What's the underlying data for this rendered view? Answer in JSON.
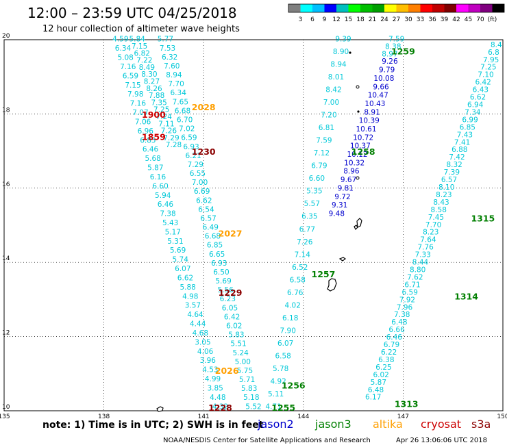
{
  "header": {
    "time_range": "12:00 – 23:59 UTC 04/25/2018",
    "subtitle": "12 hour collection of altimeter wave heights"
  },
  "colorbar": {
    "colors": [
      "#7f7f7f",
      "#00ffff",
      "#00bfff",
      "#0000ff",
      "#00bfbf",
      "#00ff00",
      "#00bf00",
      "#009f00",
      "#ffff00",
      "#ffbf00",
      "#ff7f00",
      "#ff0000",
      "#bf0000",
      "#7f0000",
      "#ff00ff",
      "#bf00bf",
      "#7f007f",
      "#000000"
    ],
    "labels": [
      "3",
      "6",
      "9",
      "12",
      "15",
      "18",
      "21",
      "24",
      "27",
      "30",
      "33",
      "36",
      "39",
      "42",
      "45",
      "70",
      "(ft)"
    ]
  },
  "map": {
    "lon_min": 135,
    "lon_max": 150,
    "lat_min": 10,
    "lat_max": 20,
    "x_ticks": [
      "135",
      "138",
      "141",
      "144",
      "147",
      "150"
    ],
    "y_ticks": [
      "20",
      "18",
      "16",
      "14",
      "12",
      "10"
    ],
    "grid": "dotted"
  },
  "colors": {
    "jason2": "#0000cd",
    "jason3": "#007f00",
    "altika": "#ff9f00",
    "cryosat": "#cc0000",
    "s3a": "#8b0000",
    "cyan": "#00c8d8",
    "swh_cyan": "#1ec8e6"
  },
  "track_labels": [
    {
      "text": "2028",
      "color": "altika",
      "lon": 141.0,
      "lat": 18.1
    },
    {
      "text": "1900",
      "color": "cryosat",
      "lon": 139.5,
      "lat": 17.9
    },
    {
      "text": "1859",
      "color": "cryosat",
      "lon": 139.5,
      "lat": 17.3
    },
    {
      "text": "1230",
      "color": "s3a",
      "lon": 141.0,
      "lat": 16.9
    },
    {
      "text": "2027",
      "color": "altika",
      "lon": 141.8,
      "lat": 14.7
    },
    {
      "text": "1229",
      "color": "s3a",
      "lon": 141.8,
      "lat": 13.1
    },
    {
      "text": "2026",
      "color": "altika",
      "lon": 141.7,
      "lat": 11.0
    },
    {
      "text": "1228",
      "color": "s3a",
      "lon": 141.5,
      "lat": 10.0
    },
    {
      "text": "1255",
      "color": "jason3",
      "lon": 143.4,
      "lat": 10.0
    },
    {
      "text": "1256",
      "color": "jason3",
      "lon": 143.7,
      "lat": 10.6
    },
    {
      "text": "1257",
      "color": "jason3",
      "lon": 144.6,
      "lat": 13.6
    },
    {
      "text": "1258",
      "color": "jason3",
      "lon": 145.8,
      "lat": 16.9
    },
    {
      "text": "1259",
      "color": "jason3",
      "lon": 147.0,
      "lat": 19.6
    },
    {
      "text": "1313",
      "color": "jason3",
      "lon": 147.1,
      "lat": 10.1
    },
    {
      "text": "1314",
      "color": "jason3",
      "lon": 148.9,
      "lat": 13.0
    },
    {
      "text": "1315",
      "color": "jason3",
      "lon": 149.4,
      "lat": 15.1
    }
  ],
  "tracks": [
    {
      "id": "track-a",
      "color": "cyan",
      "start": [
        139.0,
        19.95
      ],
      "end": [
        140.1,
        17.1
      ],
      "values": [
        "5.84",
        "7.15",
        "6.82",
        "7.22",
        "8.49",
        "8.30",
        "8.27",
        "8.26",
        "7.88",
        "7.35",
        "7.25",
        "7.24",
        "7.11",
        "7.26",
        "7.29",
        "7.28"
      ]
    },
    {
      "id": "track-b",
      "color": "cyan",
      "start": [
        138.5,
        19.95
      ],
      "end": [
        141.5,
        10.05
      ],
      "values": [
        "4.59",
        "6.34",
        "5.08",
        "7.16",
        "6.59",
        "7.15",
        "7.98",
        "7.16",
        "7.07",
        "7.06",
        "6.96",
        "6.85",
        "6.46",
        "5.68",
        "5.87",
        "6.16",
        "6.60",
        "5.94",
        "6.46",
        "7.38",
        "5.43",
        "5.17",
        "5.31",
        "5.69",
        "5.74",
        "6.07",
        "6.62",
        "5.88",
        "4.98",
        "3.57",
        "4.64",
        "4.44",
        "4.68",
        "3.05",
        "4.06",
        "3.96",
        "4.53",
        "4.99",
        "3.85",
        "4.48",
        "4.32"
      ]
    },
    {
      "id": "track-c",
      "color": "cyan",
      "start": [
        139.85,
        19.95
      ],
      "end": [
        142.5,
        10.05
      ],
      "values": [
        "5.77",
        "7.53",
        "6.32",
        "7.60",
        "8.94",
        "7.70",
        "6.34",
        "7.65",
        "6.68",
        "6.70",
        "7.02",
        "6.59",
        "6.93",
        "6.21",
        "7.29",
        "6.55",
        "7.00",
        "6.69",
        "6.62",
        "6.54",
        "6.57",
        "6.49",
        "6.68",
        "6.85",
        "6.65",
        "6.93",
        "6.50",
        "5.69",
        "5.56",
        "6.23",
        "6.05",
        "6.42",
        "6.02",
        "5.83",
        "5.51",
        "5.24",
        "5.00",
        "5.75",
        "5.71",
        "5.83",
        "5.18",
        "5.52"
      ]
    },
    {
      "id": "track-d",
      "color": "cyan",
      "start": [
        145.2,
        19.95
      ],
      "end": [
        143.1,
        10.05
      ],
      "values": [
        "9.39",
        "8.90",
        "8.94",
        "8.01",
        "8.42",
        "7.00",
        "7.20",
        "6.81",
        "7.59",
        "7.12",
        "6.79",
        "6.60",
        "5.35",
        "5.57",
        "6.35",
        "6.77",
        "7.26",
        "7.14",
        "6.52",
        "6.58",
        "6.76",
        "4.02",
        "6.18",
        "7.90",
        "6.07",
        "6.58",
        "5.78",
        "4.92",
        "5.11",
        "4.71"
      ]
    },
    {
      "id": "track-e",
      "color": "jason2",
      "start": [
        146.6,
        19.35
      ],
      "end": [
        145.0,
        15.25
      ],
      "values": [
        "9.26",
        "9.79",
        "10.08",
        "9.66",
        "10.47",
        "10.43",
        "8.91",
        "10.39",
        "10.61",
        "10.72",
        "10.37",
        "10.12",
        "10.32",
        "8.96",
        "9.67",
        "9.81",
        "9.72",
        "9.31",
        "9.48"
      ]
    },
    {
      "id": "track-f",
      "color": "cyan",
      "start": [
        146.8,
        19.95
      ],
      "end": [
        146.6,
        19.55
      ],
      "values": [
        "7.59",
        "8.38",
        "8.97"
      ]
    },
    {
      "id": "track-g",
      "color": "cyan",
      "start": [
        149.8,
        19.8
      ],
      "end": [
        146.1,
        10.3
      ],
      "values": [
        "8.4",
        "6.8",
        "7.95",
        "7.25",
        "7.10",
        "6.42",
        "6.43",
        "6.62",
        "6.94",
        "7.34",
        "6.99",
        "6.85",
        "7.43",
        "7.41",
        "6.88",
        "7.42",
        "8.32",
        "7.39",
        "6.57",
        "8.10",
        "8.23",
        "8.43",
        "8.58",
        "7.45",
        "7.70",
        "8.23",
        "7.64",
        "7.76",
        "7.33",
        "8.44",
        "8.80",
        "7.62",
        "6.71",
        "6.59",
        "7.92",
        "7.96",
        "7.38",
        "6.48",
        "6.66",
        "6.46",
        "6.79",
        "6.22",
        "6.38",
        "6.25",
        "6.02",
        "5.87",
        "6.48",
        "6.17"
      ]
    }
  ],
  "footer": {
    "note": "note:  1)  Time is in UTC;  2)  SWH is in feet",
    "legend": [
      {
        "label": "jason2",
        "color": "jason2"
      },
      {
        "label": "jason3",
        "color": "jason3"
      },
      {
        "label": "altika",
        "color": "altika"
      },
      {
        "label": "cryosat",
        "color": "cryosat"
      },
      {
        "label": "s3a",
        "color": "s3a"
      }
    ],
    "credit": "NOAA/NESDIS Center for Satellite Applications and Research",
    "timestamp": "Apr 26 13:06:06 UTC 2018"
  }
}
